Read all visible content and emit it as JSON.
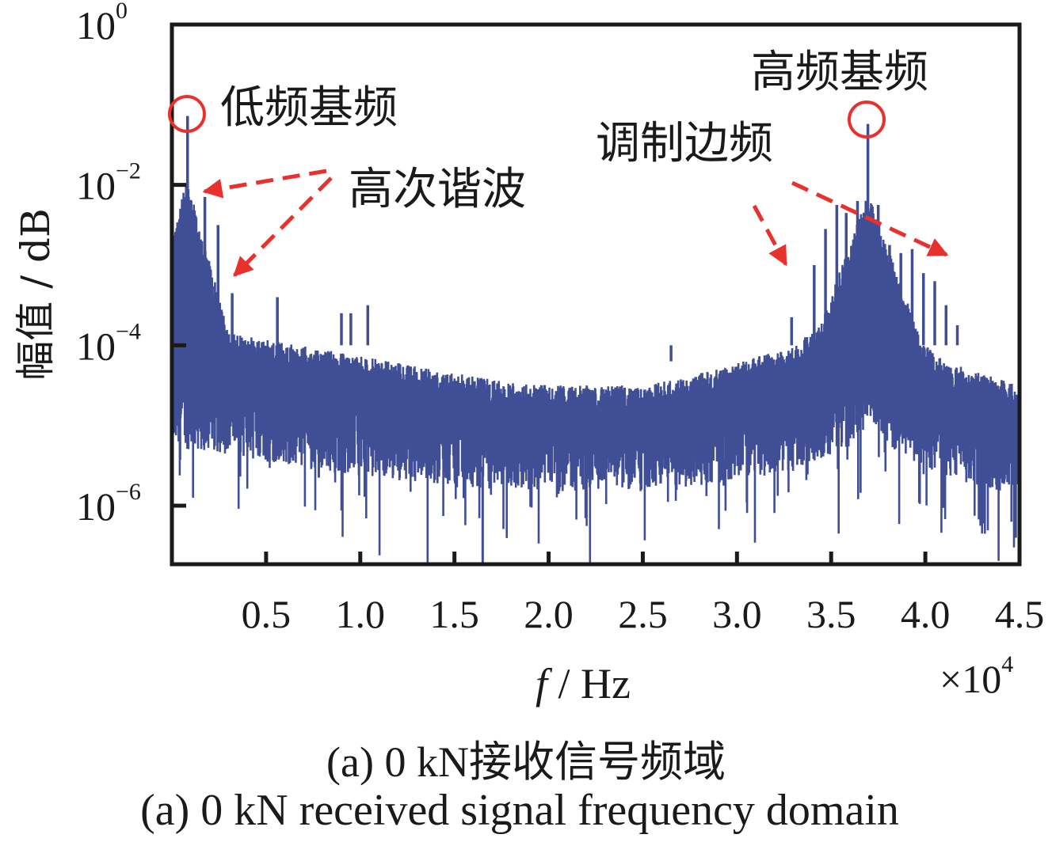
{
  "chart_data": {
    "type": "line",
    "title": "",
    "xlabel_italic": "f",
    "xlabel_rest": " / Hz",
    "ylabel": "幅值 / dB",
    "xlim": [
      0,
      4.5
    ],
    "ylim_log10": [
      -6.73,
      0
    ],
    "x_multiplier": "×10",
    "x_multiplier_exp": "4",
    "x_ticks": [
      0.5,
      1.0,
      1.5,
      2.0,
      2.5,
      3.0,
      3.5,
      4.0,
      4.5
    ],
    "x_tick_labels": [
      "0.5",
      "1.0",
      "1.5",
      "2.0",
      "2.5",
      "3.0",
      "3.5",
      "4.0",
      "4.5"
    ],
    "y_ticks_log10": [
      0,
      -2,
      -4,
      -6
    ],
    "y_tick_labels": [
      {
        "base": "10",
        "exp": "0"
      },
      {
        "base": "10",
        "exp": "−2"
      },
      {
        "base": "10",
        "exp": "−4"
      },
      {
        "base": "10",
        "exp": "−6"
      }
    ],
    "series_color": "#3f4e95",
    "annotation_color": "#e8312d",
    "noise_floor": [
      {
        "x": 0.0,
        "top": -3.6,
        "bottom": -5.0
      },
      {
        "x": 0.3,
        "top": -3.85,
        "bottom": -5.1
      },
      {
        "x": 0.8,
        "top": -4.05,
        "bottom": -5.3
      },
      {
        "x": 1.5,
        "top": -4.35,
        "bottom": -5.5
      },
      {
        "x": 2.0,
        "top": -4.5,
        "bottom": -5.55
      },
      {
        "x": 2.5,
        "top": -4.5,
        "bottom": -5.55
      },
      {
        "x": 2.9,
        "top": -4.3,
        "bottom": -5.45
      },
      {
        "x": 3.3,
        "top": -4.0,
        "bottom": -5.3
      },
      {
        "x": 3.6,
        "top": -3.5,
        "bottom": -5.0
      },
      {
        "x": 3.7,
        "top": -3.0,
        "bottom": -4.6
      },
      {
        "x": 3.8,
        "top": -3.6,
        "bottom": -5.0
      },
      {
        "x": 4.1,
        "top": -4.2,
        "bottom": -5.4
      },
      {
        "x": 4.5,
        "top": -4.5,
        "bottom": -5.6
      }
    ],
    "peaks": [
      {
        "x": 0.083,
        "y": -1.14,
        "label": "low-frequency fundamental"
      },
      {
        "x": 0.175,
        "y": -2.15
      },
      {
        "x": 0.245,
        "y": -2.5
      },
      {
        "x": 0.32,
        "y": -3.35
      },
      {
        "x": 0.56,
        "y": -3.4
      },
      {
        "x": 0.9,
        "y": -3.6
      },
      {
        "x": 0.95,
        "y": -3.6
      },
      {
        "x": 1.04,
        "y": -3.5
      },
      {
        "x": 1.75,
        "y": -4.0
      },
      {
        "x": 2.65,
        "y": -4.2
      },
      {
        "x": 3.29,
        "y": -3.65
      },
      {
        "x": 3.41,
        "y": -3.0
      },
      {
        "x": 3.47,
        "y": -2.55
      },
      {
        "x": 3.53,
        "y": -2.25
      },
      {
        "x": 3.58,
        "y": -2.35
      },
      {
        "x": 3.64,
        "y": -2.2
      },
      {
        "x": 3.695,
        "y": -1.24,
        "label": "high-frequency fundamental"
      },
      {
        "x": 3.75,
        "y": -2.25
      },
      {
        "x": 3.81,
        "y": -2.75
      },
      {
        "x": 3.87,
        "y": -2.85
      },
      {
        "x": 3.93,
        "y": -2.8
      },
      {
        "x": 3.99,
        "y": -3.1
      },
      {
        "x": 4.05,
        "y": -3.2
      },
      {
        "x": 4.11,
        "y": -3.5
      },
      {
        "x": 4.17,
        "y": -3.75
      }
    ]
  },
  "annotations": {
    "low_fundamental": "低频基频",
    "harmonics": "高次谐波",
    "high_fundamental": "高频基频",
    "sidebands": "调制边频"
  },
  "caption": {
    "cn": "(a)  0 kN接收信号频域",
    "en": "(a)  0 kN received signal frequency domain"
  }
}
